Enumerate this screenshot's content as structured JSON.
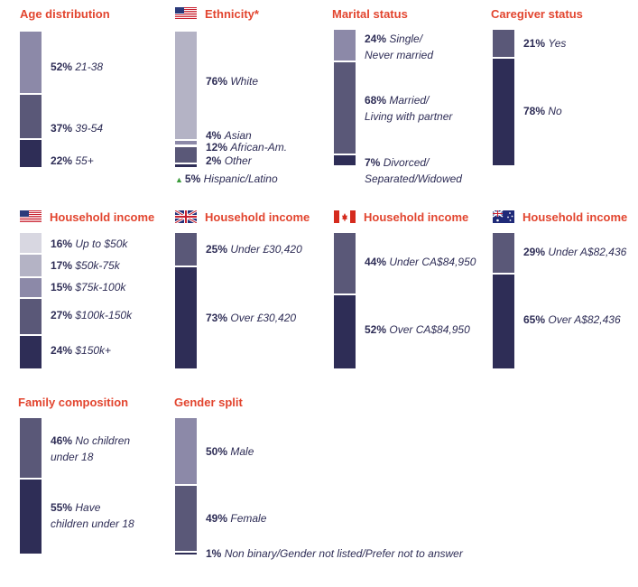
{
  "chart_data": [
    {
      "type": "bar",
      "title": "Age distribution",
      "flag": "",
      "categories": [
        "21-38",
        "39-54",
        "55+"
      ],
      "values": [
        52,
        37,
        22
      ],
      "labels": [
        {
          "pct": "52%",
          "text": "21-38"
        },
        {
          "pct": "37%",
          "text": "39-54"
        },
        {
          "pct": "22%",
          "text": "55+"
        }
      ],
      "colors": [
        "#8c89a8",
        "#5a5878",
        "#2e2d56"
      ]
    },
    {
      "type": "bar",
      "title": "Ethnicity*",
      "flag": "us",
      "categories": [
        "White",
        "Asian",
        "African-Am.",
        "Other"
      ],
      "values": [
        76,
        4,
        12,
        2
      ],
      "labels": [
        {
          "pct": "76%",
          "text": "White"
        },
        {
          "pct": "4%",
          "text": "Asian"
        },
        {
          "pct": "12%",
          "text": "African-Am."
        },
        {
          "pct": "2%",
          "text": "Other"
        }
      ],
      "colors": [
        "#b4b3c5",
        "#8c89a8",
        "#5a5878",
        "#2e2d56"
      ],
      "annotation": {
        "marker": "▲",
        "pct": "5%",
        "text": "Hispanic/Latino"
      }
    },
    {
      "type": "bar",
      "title": "Marital status",
      "flag": "",
      "categories": [
        "Single/ Never married",
        "Married/ Living with partner",
        "Divorced/ Separated/Widowed"
      ],
      "values": [
        24,
        68,
        7
      ],
      "labels": [
        {
          "pct": "24%",
          "text": "Single/",
          "text2": "Never married"
        },
        {
          "pct": "68%",
          "text": "Married/",
          "text2": "Living with partner"
        },
        {
          "pct": "7%",
          "text": "Divorced/",
          "text2": "Separated/Widowed"
        }
      ],
      "colors": [
        "#8c89a8",
        "#5a5878",
        "#2e2d56"
      ]
    },
    {
      "type": "bar",
      "title": "Caregiver status",
      "flag": "",
      "categories": [
        "Yes",
        "No"
      ],
      "values": [
        21,
        78
      ],
      "labels": [
        {
          "pct": "21%",
          "text": "Yes"
        },
        {
          "pct": "78%",
          "text": "No"
        }
      ],
      "colors": [
        "#5a5878",
        "#2e2d56"
      ]
    },
    {
      "type": "bar",
      "title": "Household income",
      "flag": "us",
      "categories": [
        "Up to $50k",
        "$50k-75k",
        "$75k-100k",
        "$100k-150k",
        "$150k+"
      ],
      "values": [
        16,
        17,
        15,
        27,
        24
      ],
      "labels": [
        {
          "pct": "16%",
          "text": "Up to $50k"
        },
        {
          "pct": "17%",
          "text": "$50k-75k"
        },
        {
          "pct": "15%",
          "text": "$75k-100k"
        },
        {
          "pct": "27%",
          "text": "$100k-150k"
        },
        {
          "pct": "24%",
          "text": "$150k+"
        }
      ],
      "colors": [
        "#d8d7e1",
        "#b4b3c5",
        "#8c89a8",
        "#5a5878",
        "#2e2d56"
      ]
    },
    {
      "type": "bar",
      "title": "Household income",
      "flag": "uk",
      "categories": [
        "Under £30,420",
        "Over £30,420"
      ],
      "values": [
        25,
        73
      ],
      "labels": [
        {
          "pct": "25%",
          "text": "Under £30,420"
        },
        {
          "pct": "73%",
          "text": "Over £30,420"
        }
      ],
      "colors": [
        "#5a5878",
        "#2e2d56"
      ]
    },
    {
      "type": "bar",
      "title": "Household income",
      "flag": "ca",
      "categories": [
        "Under CA$84,950",
        "Over CA$84,950"
      ],
      "values": [
        44,
        52
      ],
      "labels": [
        {
          "pct": "44%",
          "text": "Under CA$84,950"
        },
        {
          "pct": "52%",
          "text": "Over CA$84,950"
        }
      ],
      "colors": [
        "#5a5878",
        "#2e2d56"
      ]
    },
    {
      "type": "bar",
      "title": "Household income",
      "flag": "au",
      "categories": [
        "Under A$82,436",
        "Over A$82,436"
      ],
      "values": [
        29,
        65
      ],
      "labels": [
        {
          "pct": "29%",
          "text": "Under A$82,436"
        },
        {
          "pct": "65%",
          "text": "Over A$82,436"
        }
      ],
      "colors": [
        "#5a5878",
        "#2e2d56"
      ]
    },
    {
      "type": "bar",
      "title": "Family composition",
      "flag": "",
      "categories": [
        "No children under 18",
        "Have children under 18"
      ],
      "values": [
        46,
        55
      ],
      "labels": [
        {
          "pct": "46%",
          "text": "No children",
          "text2": "under 18"
        },
        {
          "pct": "55%",
          "text": "Have",
          "text2": "children under 18"
        }
      ],
      "colors": [
        "#5a5878",
        "#2e2d56"
      ]
    },
    {
      "type": "bar",
      "title": "Gender split",
      "flag": "",
      "categories": [
        "Male",
        "Female",
        "Non binary/Gender not listed/Prefer not to answer"
      ],
      "values": [
        50,
        49,
        1
      ],
      "labels": [
        {
          "pct": "50%",
          "text": "Male"
        },
        {
          "pct": "49%",
          "text": "Female"
        },
        {
          "pct": "1%",
          "text": "Non binary/Gender not listed/Prefer not to answer"
        }
      ],
      "colors": [
        "#8c89a8",
        "#5a5878",
        "#2e2d56"
      ]
    }
  ]
}
